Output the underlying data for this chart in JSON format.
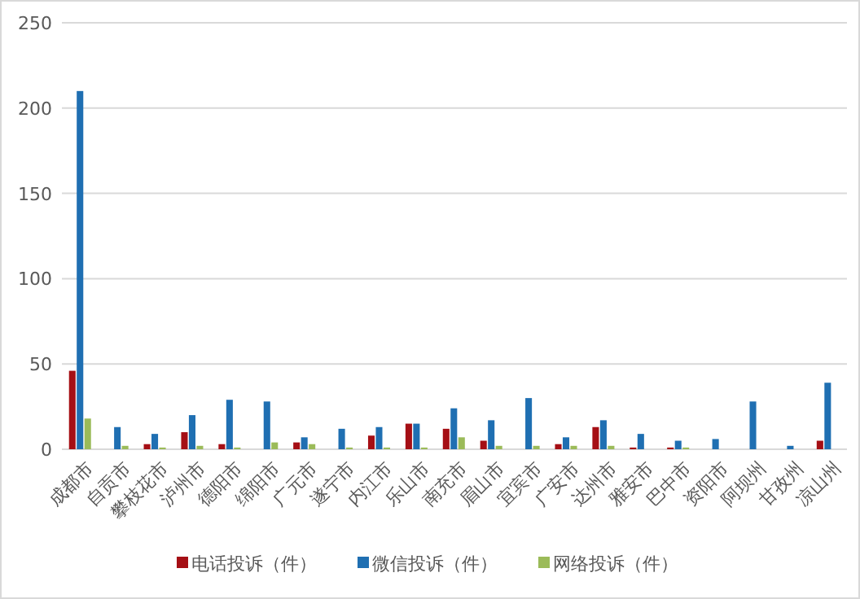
{
  "chart_data": {
    "type": "bar",
    "categories": [
      "成都市",
      "自贡市",
      "攀枝花市",
      "泸州市",
      "德阳市",
      "绵阳市",
      "广元市",
      "遂宁市",
      "内江市",
      "乐山市",
      "南充市",
      "眉山市",
      "宜宾市",
      "广安市",
      "达州市",
      "雅安市",
      "巴中市",
      "资阳市",
      "阿坝州",
      "甘孜州",
      "凉山州"
    ],
    "series": [
      {
        "name": "电话投诉（件）",
        "color": "#a50f15",
        "values": [
          46,
          0,
          3,
          10,
          3,
          0,
          4,
          0,
          8,
          15,
          12,
          5,
          0,
          3,
          13,
          1,
          1,
          0,
          0,
          0,
          5
        ]
      },
      {
        "name": "微信投诉（件）",
        "color": "#1f6fb2",
        "values": [
          210,
          13,
          9,
          20,
          29,
          28,
          7,
          12,
          13,
          15,
          24,
          17,
          30,
          7,
          17,
          9,
          5,
          6,
          28,
          2,
          39
        ]
      },
      {
        "name": "网络投诉（件）",
        "color": "#9bbb59",
        "values": [
          18,
          2,
          1,
          2,
          1,
          4,
          3,
          1,
          1,
          1,
          7,
          2,
          2,
          2,
          2,
          0,
          1,
          0,
          0,
          0,
          0
        ]
      }
    ],
    "ylim": [
      0,
      250
    ],
    "yticks": [
      0,
      50,
      100,
      150,
      200,
      250
    ],
    "grid": "y",
    "legend": "bottom"
  }
}
